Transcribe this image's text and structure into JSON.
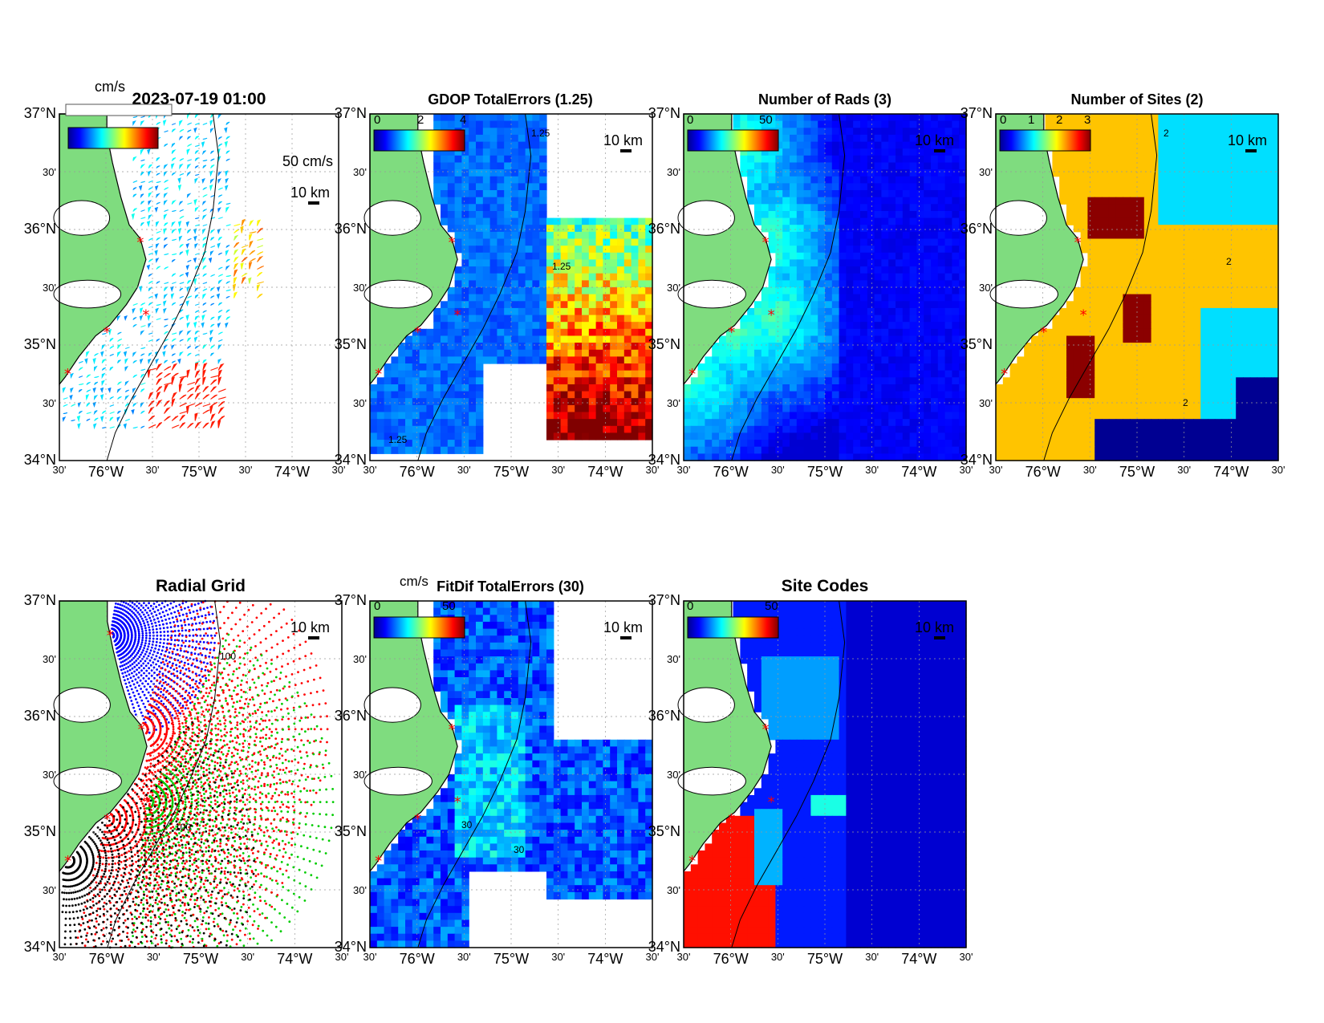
{
  "figure": {
    "timestamp": "2023-07-19 01:00",
    "velocity_units": "cm/s",
    "reference_vector": "50 cm/s",
    "scale_bar": "10 km",
    "site_marker": "red-asterisk",
    "land_color": "#7fdc7f",
    "colormap": "jet",
    "lat_tick_labels": [
      "34°N",
      "30'",
      "35°N",
      "30'",
      "36°N",
      "30'",
      "37°N"
    ],
    "lon_tick_labels": [
      "30'",
      "76°W",
      "30'",
      "75°W",
      "30'",
      "74°W",
      "30'"
    ]
  },
  "panels": [
    {
      "id": "total-velocity",
      "title": "",
      "colorbar_label": "cm/s",
      "colorbar_ticks": [],
      "contour_label": "",
      "map": "vectors"
    },
    {
      "id": "gdop-total-errors",
      "title": "GDOP TotalErrors (1.25)",
      "colorbar_label": "",
      "colorbar_ticks": [
        "0",
        "2",
        "4"
      ],
      "contour_label": "1.25",
      "map": "heat"
    },
    {
      "id": "number-of-rads",
      "title": "Number of Rads (3)",
      "colorbar_label": "",
      "colorbar_ticks": [
        "0",
        "50"
      ],
      "contour_label": "",
      "map": "heat"
    },
    {
      "id": "number-of-sites",
      "title": "Number of Sites (2)",
      "colorbar_label": "",
      "colorbar_ticks": [
        "0",
        "1",
        "2",
        "3"
      ],
      "contour_label": "2",
      "map": "heat"
    },
    {
      "id": "radial-grid",
      "title": "Radial Grid",
      "colorbar_label": "",
      "colorbar_ticks": [],
      "contour_label": "100",
      "map": "radial"
    },
    {
      "id": "fitdif-total-errors",
      "title": "FitDif TotalErrors (30)",
      "colorbar_label": "cm/s",
      "colorbar_ticks": [
        "0",
        "50"
      ],
      "contour_label": "30",
      "map": "heat"
    },
    {
      "id": "site-codes",
      "title": "Site Codes",
      "colorbar_label": "",
      "colorbar_ticks": [
        "0",
        "50"
      ],
      "contour_label": "",
      "map": "heat"
    }
  ]
}
